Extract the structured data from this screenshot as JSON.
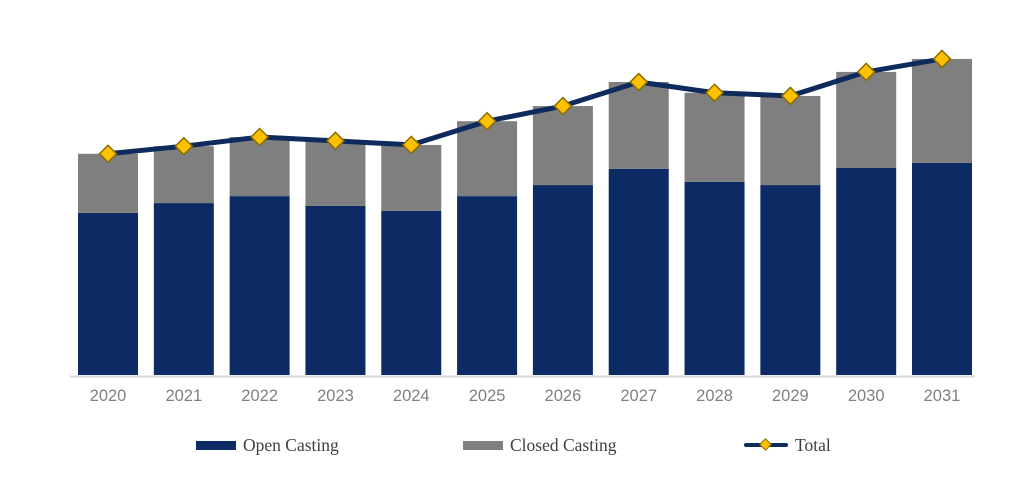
{
  "chart_data": {
    "type": "bar",
    "subtype": "stacked-bars-with-total-line",
    "title": "",
    "xlabel": "",
    "ylabel": "",
    "categories": [
      "2020",
      "2021",
      "2022",
      "2023",
      "2024",
      "2025",
      "2026",
      "2027",
      "2028",
      "2029",
      "2030",
      "2031"
    ],
    "series": [
      {
        "name": "Open Casting",
        "render": "bar",
        "color": "#0c2a63",
        "values": [
          51.3,
          54.4,
          56.6,
          53.5,
          51.9,
          56.6,
          60.1,
          65.2,
          61.1,
          60.1,
          65.5,
          67.1
        ]
      },
      {
        "name": "Closed Casting",
        "render": "bar",
        "color": "#7f7f7f",
        "values": [
          18.7,
          18.0,
          18.7,
          20.6,
          20.9,
          23.7,
          25.0,
          27.5,
          28.2,
          28.2,
          30.4,
          32.9
        ]
      },
      {
        "name": "Total",
        "render": "line",
        "color": "#0f2a5c",
        "marker": "diamond",
        "marker_fill": "#ffc000",
        "marker_stroke": "#8a6d00",
        "values": [
          70.0,
          72.4,
          75.3,
          74.1,
          72.8,
          80.3,
          85.1,
          92.7,
          89.3,
          88.3,
          95.9,
          100.0
        ]
      }
    ],
    "stacked": true,
    "ylim": [
      0,
      106
    ],
    "units": "index (no axis values shown; 2031 total = 100)",
    "grid": false,
    "y_axis_visible": false,
    "legend_position": "bottom"
  },
  "colors": {
    "axis_line": "#d9d9d9",
    "tick_label": "#808080",
    "legend_text": "#3f3f3f"
  }
}
